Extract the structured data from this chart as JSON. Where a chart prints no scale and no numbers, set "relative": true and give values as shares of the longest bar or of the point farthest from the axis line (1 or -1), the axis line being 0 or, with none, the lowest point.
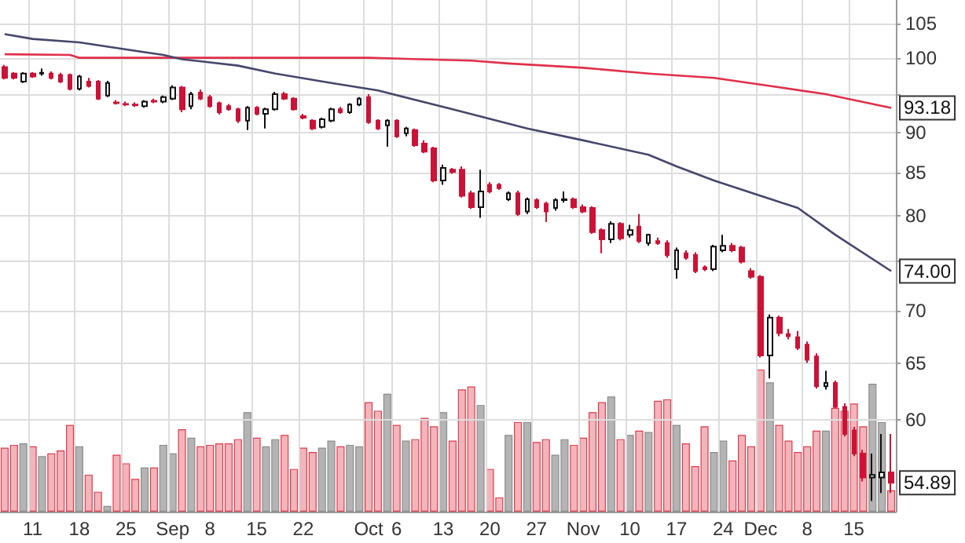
{
  "chart_data": [
    {
      "type": "candlestick",
      "categories": [
        null,
        null,
        null,
        "11",
        null,
        null,
        null,
        null,
        "18",
        null,
        null,
        null,
        null,
        "25",
        null,
        null,
        null,
        null,
        "Sep",
        null,
        null,
        null,
        "8",
        null,
        null,
        null,
        null,
        "15",
        null,
        null,
        null,
        null,
        "22",
        null,
        null,
        null,
        null,
        null,
        null,
        "Oct",
        null,
        null,
        "6",
        null,
        null,
        null,
        null,
        "13",
        null,
        null,
        null,
        null,
        "20",
        null,
        null,
        null,
        null,
        "27",
        null,
        null,
        null,
        null,
        "Nov",
        null,
        null,
        null,
        null,
        "10",
        null,
        null,
        null,
        null,
        "17",
        null,
        null,
        null,
        null,
        "24",
        null,
        null,
        null,
        "Dec",
        null,
        null,
        null,
        null,
        "8",
        null,
        null,
        null,
        null,
        "15",
        null,
        null,
        null,
        null
      ],
      "series": [
        {
          "type": "candlestick",
          "ohlc": [
            [
              98.7,
              99.0,
              97.0,
              97.2
            ],
            [
              97.8,
              98.0,
              97.0,
              97.2
            ],
            [
              96.7,
              98.0,
              96.5,
              97.8
            ],
            [
              97.8,
              98.0,
              97.2,
              97.4
            ],
            [
              97.8,
              98.5,
              97.5,
              97.9
            ],
            [
              97.8,
              98.1,
              97.0,
              97.2
            ],
            [
              97.6,
              97.9,
              96.5,
              96.7
            ],
            [
              97.6,
              97.8,
              95.5,
              95.7
            ],
            [
              95.7,
              97.6,
              95.5,
              97.4
            ],
            [
              96.7,
              97.2,
              95.9,
              96.1
            ],
            [
              96.7,
              96.9,
              94.2,
              94.4
            ],
            [
              94.8,
              96.8,
              94.6,
              96.5
            ],
            [
              93.9,
              94.2,
              93.6,
              93.8
            ],
            [
              93.7,
              94.0,
              93.4,
              93.6
            ],
            [
              93.6,
              93.9,
              93.3,
              93.5
            ],
            [
              93.4,
              94.2,
              93.2,
              94.0
            ],
            [
              94.1,
              94.4,
              93.8,
              94.0
            ],
            [
              94.0,
              94.8,
              93.8,
              94.6
            ],
            [
              94.4,
              96.2,
              94.2,
              95.9
            ],
            [
              95.9,
              96.1,
              92.6,
              93.0
            ],
            [
              93.4,
              95.3,
              93.0,
              95.0
            ],
            [
              95.2,
              95.6,
              94.2,
              94.4
            ],
            [
              94.6,
              94.9,
              93.2,
              93.4
            ],
            [
              93.8,
              94.0,
              92.3,
              92.6
            ],
            [
              93.4,
              93.7,
              92.8,
              93.0
            ],
            [
              93.0,
              93.2,
              91.2,
              91.5
            ],
            [
              91.5,
              93.4,
              90.3,
              93.2
            ],
            [
              93.2,
              93.4,
              92.2,
              92.4
            ],
            [
              92.4,
              93.2,
              90.5,
              93.0
            ],
            [
              93.0,
              95.3,
              92.8,
              95.0
            ],
            [
              95.0,
              95.3,
              94.2,
              94.4
            ],
            [
              94.4,
              94.6,
              92.8,
              93.0
            ],
            [
              92.1,
              92.4,
              91.7,
              91.9
            ],
            [
              91.5,
              91.7,
              90.3,
              90.5
            ],
            [
              90.7,
              91.9,
              90.5,
              91.7
            ],
            [
              91.5,
              93.2,
              91.3,
              93.0
            ],
            [
              93.0,
              93.3,
              92.4,
              92.6
            ],
            [
              92.6,
              93.8,
              92.4,
              93.6
            ],
            [
              93.6,
              94.6,
              93.4,
              94.4
            ],
            [
              94.6,
              95.0,
              91.1,
              91.3
            ],
            [
              91.5,
              91.7,
              90.3,
              90.5
            ],
            [
              90.9,
              91.7,
              88.2,
              91.5
            ],
            [
              91.5,
              91.7,
              89.3,
              89.5
            ],
            [
              89.9,
              90.7,
              89.5,
              90.5
            ],
            [
              90.3,
              90.5,
              88.2,
              88.4
            ],
            [
              88.6,
              89.0,
              87.4,
              87.6
            ],
            [
              88.0,
              88.2,
              83.9,
              84.1
            ],
            [
              84.1,
              86.0,
              83.6,
              85.6
            ],
            [
              85.4,
              85.6,
              84.9,
              85.1
            ],
            [
              85.4,
              85.8,
              82.1,
              82.3
            ],
            [
              82.6,
              82.9,
              80.8,
              81.0
            ],
            [
              81.0,
              85.4,
              79.8,
              82.8
            ],
            [
              83.6,
              83.9,
              82.6,
              82.8
            ],
            [
              83.6,
              83.8,
              83.0,
              83.2
            ],
            [
              81.9,
              82.8,
              81.7,
              82.6
            ],
            [
              82.6,
              82.9,
              80.0,
              80.2
            ],
            [
              80.5,
              82.1,
              80.2,
              81.9
            ],
            [
              81.8,
              82.0,
              80.8,
              81.0
            ],
            [
              81.4,
              81.6,
              79.3,
              80.5
            ],
            [
              80.9,
              82.0,
              80.6,
              81.8
            ],
            [
              81.8,
              82.8,
              81.5,
              81.9
            ],
            [
              81.9,
              82.1,
              80.8,
              81.0
            ],
            [
              81.0,
              81.3,
              80.3,
              80.5
            ],
            [
              80.9,
              81.1,
              78.0,
              78.2
            ],
            [
              78.4,
              78.6,
              75.9,
              77.4
            ],
            [
              77.4,
              79.4,
              77.0,
              79.1
            ],
            [
              79.1,
              79.3,
              77.3,
              77.5
            ],
            [
              77.9,
              79.0,
              77.6,
              78.4
            ],
            [
              78.8,
              80.2,
              77.0,
              77.2
            ],
            [
              77.0,
              78.0,
              76.7,
              77.9
            ],
            [
              77.2,
              77.6,
              76.8,
              77.0
            ],
            [
              77.0,
              77.3,
              75.4,
              75.7
            ],
            [
              74.2,
              76.5,
              73.2,
              76.2
            ],
            [
              75.9,
              76.2,
              75.2,
              75.4
            ],
            [
              75.7,
              76.0,
              73.8,
              74.0
            ],
            [
              74.4,
              74.6,
              74.0,
              74.2
            ],
            [
              74.2,
              76.8,
              74.0,
              76.6
            ],
            [
              76.2,
              77.9,
              76.0,
              76.7
            ],
            [
              76.7,
              77.0,
              76.0,
              76.2
            ],
            [
              76.5,
              76.7,
              74.8,
              75.0
            ],
            [
              74.0,
              74.3,
              73.2,
              73.4
            ],
            [
              73.4,
              73.6,
              65.5,
              65.7
            ],
            [
              65.7,
              69.6,
              63.6,
              69.3
            ],
            [
              69.3,
              69.5,
              67.5,
              67.8
            ],
            [
              67.7,
              68.2,
              67.2,
              67.5
            ],
            [
              67.4,
              68.0,
              66.2,
              66.4
            ],
            [
              66.7,
              67.0,
              65.0,
              65.3
            ],
            [
              65.6,
              65.9,
              62.7,
              62.9
            ],
            [
              62.9,
              64.3,
              62.6,
              63.2
            ],
            [
              63.2,
              63.4,
              61.0,
              61.1
            ],
            [
              61.1,
              61.4,
              58.6,
              58.8
            ],
            [
              59.1,
              59.4,
              57.0,
              57.2
            ],
            [
              57.2,
              57.5,
              55.0,
              55.3
            ],
            [
              55.3,
              57.2,
              53.5,
              55.5
            ],
            [
              55.3,
              58.8,
              54.1,
              55.7
            ],
            [
              55.7,
              58.8,
              54.1,
              54.89
            ]
          ],
          "colors": [
            "#cc1236",
            "#cc1236",
            "#ffffff",
            "#cc1236",
            "#ffffff",
            "#cc1236",
            "#cc1236",
            "#cc1236",
            "#ffffff",
            "#cc1236",
            "#cc1236",
            "#ffffff",
            "#cc1236",
            "#cc1236",
            "#cc1236",
            "#ffffff",
            "#cc1236",
            "#ffffff",
            "#ffffff",
            "#cc1236",
            "#ffffff",
            "#cc1236",
            "#cc1236",
            "#cc1236",
            "#cc1236",
            "#cc1236",
            "#ffffff",
            "#cc1236",
            "#ffffff",
            "#ffffff",
            "#cc1236",
            "#cc1236",
            "#cc1236",
            "#cc1236",
            "#ffffff",
            "#ffffff",
            "#cc1236",
            "#ffffff",
            "#ffffff",
            "#cc1236",
            "#cc1236",
            "#ffffff",
            "#cc1236",
            "#ffffff",
            "#cc1236",
            "#cc1236",
            "#cc1236",
            "#ffffff",
            "#cc1236",
            "#cc1236",
            "#cc1236",
            "#ffffff",
            "#cc1236",
            "#cc1236",
            "#ffffff",
            "#cc1236",
            "#ffffff",
            "#cc1236",
            "#cc1236",
            "#ffffff",
            "#ffffff",
            "#cc1236",
            "#cc1236",
            "#cc1236",
            "#cc1236",
            "#ffffff",
            "#cc1236",
            "#ffffff",
            "#cc1236",
            "#ffffff",
            "#cc1236",
            "#cc1236",
            "#ffffff",
            "#cc1236",
            "#cc1236",
            "#cc1236",
            "#ffffff",
            "#ffffff",
            "#cc1236",
            "#cc1236",
            "#cc1236",
            "#cc1236",
            "#ffffff",
            "#cc1236",
            "#cc1236",
            "#cc1236",
            "#cc1236",
            "#cc1236",
            "#ffffff",
            "#cc1236",
            "#cc1236",
            "#cc1236",
            "#cc1236",
            "#ffffff",
            "#ffffff",
            "#cc1236"
          ]
        },
        {
          "type": "line",
          "color": "#e0304a",
          "values": [
            100.5,
            null,
            null,
            null,
            null,
            null,
            null,
            100.4,
            100.0,
            null,
            null,
            null,
            null,
            null,
            null,
            null,
            null,
            null,
            null,
            null,
            100.0,
            null,
            null,
            null,
            null,
            null,
            null,
            null,
            null,
            null,
            null,
            null,
            null,
            null,
            null,
            null,
            null,
            null,
            null,
            100.0,
            null,
            null,
            null,
            null,
            null,
            null,
            null,
            null,
            null,
            null,
            99.6,
            null,
            null,
            null,
            99.2,
            null,
            null,
            null,
            null,
            null,
            null,
            null,
            98.6,
            null,
            null,
            null,
            null,
            null,
            null,
            97.8,
            null,
            null,
            null,
            null,
            null,
            null,
            97.2,
            null,
            null,
            null,
            null,
            null,
            96.1,
            null,
            null,
            null,
            null,
            null,
            95.0,
            null,
            null,
            null,
            null,
            null,
            null,
            93.18
          ]
        },
        {
          "type": "line",
          "color": "#45476a",
          "values": [
            103.4,
            null,
            null,
            102.7,
            null,
            null,
            null,
            null,
            102.2,
            null,
            null,
            null,
            null,
            null,
            101.0,
            null,
            null,
            100.4,
            null,
            99.8,
            null,
            null,
            null,
            null,
            null,
            98.9,
            null,
            null,
            null,
            97.8,
            null,
            null,
            null,
            null,
            null,
            96.5,
            null,
            null,
            null,
            null,
            95.5,
            null,
            null,
            null,
            null,
            null,
            null,
            null,
            93.0,
            null,
            null,
            null,
            null,
            null,
            null,
            null,
            90.5,
            null,
            null,
            null,
            null,
            null,
            89.0,
            null,
            null,
            null,
            null,
            null,
            null,
            87.2,
            null,
            null,
            85.8,
            null,
            null,
            null,
            84.1,
            null,
            null,
            null,
            null,
            82.3,
            null,
            null,
            null,
            80.9,
            null,
            null,
            null,
            77.9,
            null,
            null,
            null,
            null,
            null,
            74.0
          ]
        }
      ],
      "ylim": [
        52.7,
        108.5
      ],
      "yticks": [
        60,
        65,
        70,
        {
          "value": 75,
          "label": null
        },
        80,
        85,
        90,
        {
          "value": 95,
          "label": null
        },
        100,
        105
      ],
      "log": "y",
      "grid": true,
      "annotations": [
        {
          "text": "93.18",
          "y": 93.18
        },
        {
          "text": "74.00",
          "y": 74.0
        },
        {
          "text": "54.89",
          "y": 54.89
        }
      ]
    },
    {
      "type": "bar",
      "relative": true,
      "categories": [
        null,
        null,
        null,
        null,
        null,
        null,
        null,
        null,
        null,
        null,
        null,
        null,
        null,
        null,
        null,
        null,
        null,
        null,
        null,
        null,
        null,
        null,
        null,
        null,
        null,
        null,
        null,
        null,
        null,
        null,
        null,
        null,
        null,
        null,
        null,
        null,
        null,
        null,
        null,
        null,
        null,
        null,
        null,
        null,
        null,
        null,
        null,
        null,
        null,
        null,
        null,
        null,
        null,
        null,
        null,
        null,
        null,
        null,
        null,
        null,
        null,
        null,
        null,
        null,
        null,
        null,
        null,
        null,
        null,
        null,
        null,
        null,
        null,
        null,
        null,
        null,
        null,
        null,
        null,
        null,
        null,
        null,
        null,
        null,
        null,
        null,
        null,
        null,
        null,
        null,
        null,
        null,
        null,
        null,
        null,
        null
      ],
      "values": [
        0.45,
        0.47,
        0.48,
        0.46,
        0.39,
        0.41,
        0.43,
        0.61,
        0.46,
        0.26,
        0.14,
        0.04,
        0.4,
        0.34,
        0.23,
        0.31,
        0.31,
        0.47,
        0.41,
        0.58,
        0.52,
        0.46,
        0.47,
        0.48,
        0.48,
        0.51,
        0.7,
        0.52,
        0.46,
        0.51,
        0.54,
        0.3,
        0.45,
        0.42,
        0.45,
        0.5,
        0.46,
        0.47,
        0.46,
        0.77,
        0.71,
        0.83,
        0.61,
        0.5,
        0.51,
        0.66,
        0.6,
        0.7,
        0.5,
        0.86,
        0.88,
        0.75,
        0.3,
        0.1,
        0.54,
        0.63,
        0.63,
        0.49,
        0.51,
        0.4,
        0.51,
        0.47,
        0.52,
        0.7,
        0.77,
        0.81,
        0.51,
        0.54,
        0.57,
        0.56,
        0.78,
        0.79,
        0.61,
        0.48,
        0.32,
        0.6,
        0.42,
        0.5,
        0.36,
        0.54,
        0.46,
        1,
        0.91,
        0.61,
        0.5,
        0.42,
        0.46,
        0.57,
        0.57,
        0.73,
        0.71,
        0.76,
        0.6,
        0.9,
        0.63,
        0.15
      ],
      "colors": [
        "#f2b5bb",
        "#f2b5bb",
        "#b4b4b4",
        "#f2b5bb",
        "#b4b4b4",
        "#f2b5bb",
        "#f2b5bb",
        "#f2b5bb",
        "#b4b4b4",
        "#f2b5bb",
        "#f2b5bb",
        "#b4b4b4",
        "#f2b5bb",
        "#f2b5bb",
        "#f2b5bb",
        "#b4b4b4",
        "#f2b5bb",
        "#b4b4b4",
        "#b4b4b4",
        "#f2b5bb",
        "#b4b4b4",
        "#f2b5bb",
        "#f2b5bb",
        "#f2b5bb",
        "#f2b5bb",
        "#f2b5bb",
        "#b4b4b4",
        "#f2b5bb",
        "#b4b4b4",
        "#b4b4b4",
        "#f2b5bb",
        "#f2b5bb",
        "#f2b5bb",
        "#f2b5bb",
        "#b4b4b4",
        "#b4b4b4",
        "#f2b5bb",
        "#b4b4b4",
        "#b4b4b4",
        "#f2b5bb",
        "#f2b5bb",
        "#b4b4b4",
        "#f2b5bb",
        "#b4b4b4",
        "#f2b5bb",
        "#f2b5bb",
        "#f2b5bb",
        "#b4b4b4",
        "#f2b5bb",
        "#f2b5bb",
        "#f2b5bb",
        "#b4b4b4",
        "#f2b5bb",
        "#f2b5bb",
        "#b4b4b4",
        "#f2b5bb",
        "#b4b4b4",
        "#f2b5bb",
        "#f2b5bb",
        "#b4b4b4",
        "#b4b4b4",
        "#f2b5bb",
        "#f2b5bb",
        "#f2b5bb",
        "#f2b5bb",
        "#b4b4b4",
        "#f2b5bb",
        "#b4b4b4",
        "#f2b5bb",
        "#b4b4b4",
        "#f2b5bb",
        "#f2b5bb",
        "#b4b4b4",
        "#f2b5bb",
        "#f2b5bb",
        "#f2b5bb",
        "#b4b4b4",
        "#b4b4b4",
        "#f2b5bb",
        "#f2b5bb",
        "#f2b5bb",
        "#f2b5bb",
        "#b4b4b4",
        "#f2b5bb",
        "#f2b5bb",
        "#f2b5bb",
        "#f2b5bb",
        "#f2b5bb",
        "#b4b4b4",
        "#f2b5bb",
        "#f2b5bb",
        "#f2b5bb",
        "#f2b5bb",
        "#b4b4b4",
        "#b4b4b4",
        "#f2b5bb"
      ]
    }
  ]
}
